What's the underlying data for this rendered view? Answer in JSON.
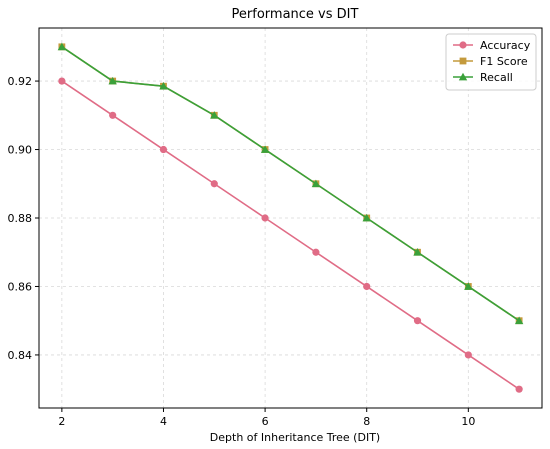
{
  "chart_data": {
    "type": "line",
    "title": "Performance vs DIT",
    "xlabel": "Depth of Inheritance Tree (DIT)",
    "ylabel": "",
    "x": [
      2,
      3,
      4,
      5,
      6,
      7,
      8,
      9,
      10,
      11
    ],
    "xlim": [
      1.55,
      11.45
    ],
    "ylim": [
      0.8245,
      0.9355
    ],
    "xticks": [
      2,
      4,
      6,
      8,
      10
    ],
    "yticks": [
      0.84,
      0.86,
      0.88,
      0.9,
      0.92
    ],
    "ytick_labels": [
      "0.84",
      "0.86",
      "0.88",
      "0.90",
      "0.92"
    ],
    "grid": true,
    "legend_position": "top-right",
    "series": [
      {
        "name": "Accuracy",
        "color": "#e06c86",
        "marker": "circle",
        "values": [
          0.92,
          0.91,
          0.9,
          0.89,
          0.88,
          0.87,
          0.86,
          0.85,
          0.84,
          0.83
        ]
      },
      {
        "name": "F1 Score",
        "color": "#c49a3c",
        "marker": "square",
        "values": [
          0.93,
          0.92,
          0.9185,
          0.91,
          0.9,
          0.89,
          0.88,
          0.87,
          0.86,
          0.85
        ]
      },
      {
        "name": "Recall",
        "color": "#3aa13a",
        "marker": "triangle",
        "values": [
          0.93,
          0.92,
          0.9185,
          0.91,
          0.9,
          0.89,
          0.88,
          0.87,
          0.86,
          0.85
        ]
      }
    ]
  }
}
